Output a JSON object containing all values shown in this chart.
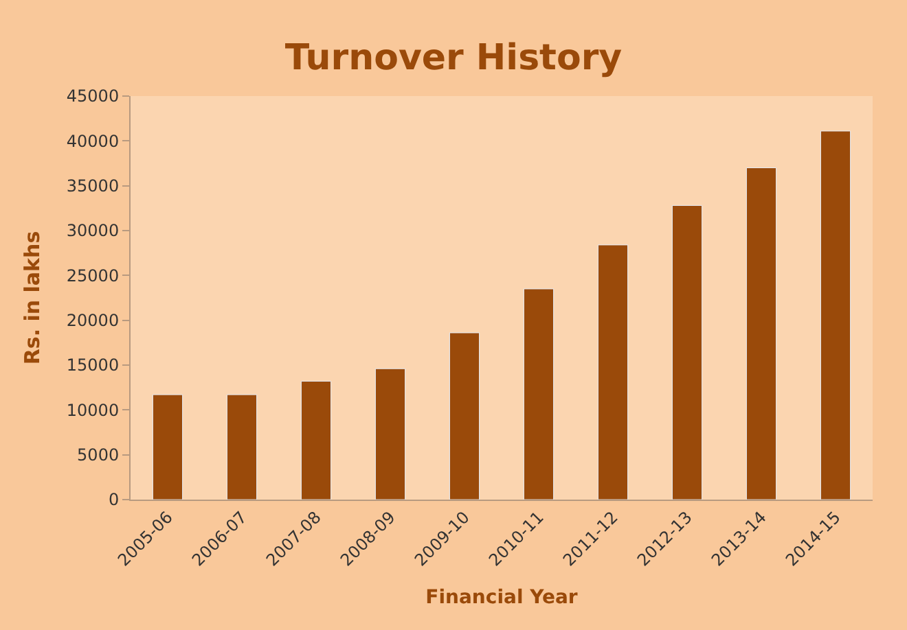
{
  "chart_data": {
    "type": "bar",
    "title": "Turnover History",
    "xlabel": "Financial Year",
    "ylabel": "Rs. in lakhs",
    "categories": [
      "2005-06",
      "2006-07",
      "2007-08",
      "2008-09",
      "2009-10",
      "2010-11",
      "2011-12",
      "2012-13",
      "2013-14",
      "2014-15"
    ],
    "values": [
      11700,
      11700,
      13200,
      14600,
      18600,
      23500,
      28400,
      32800,
      37000,
      41100
    ],
    "color": "#9a4a0a",
    "ylim": [
      0,
      45000
    ],
    "yticks": [
      0,
      5000,
      10000,
      15000,
      20000,
      25000,
      30000,
      35000,
      40000,
      45000
    ],
    "grid": false
  }
}
